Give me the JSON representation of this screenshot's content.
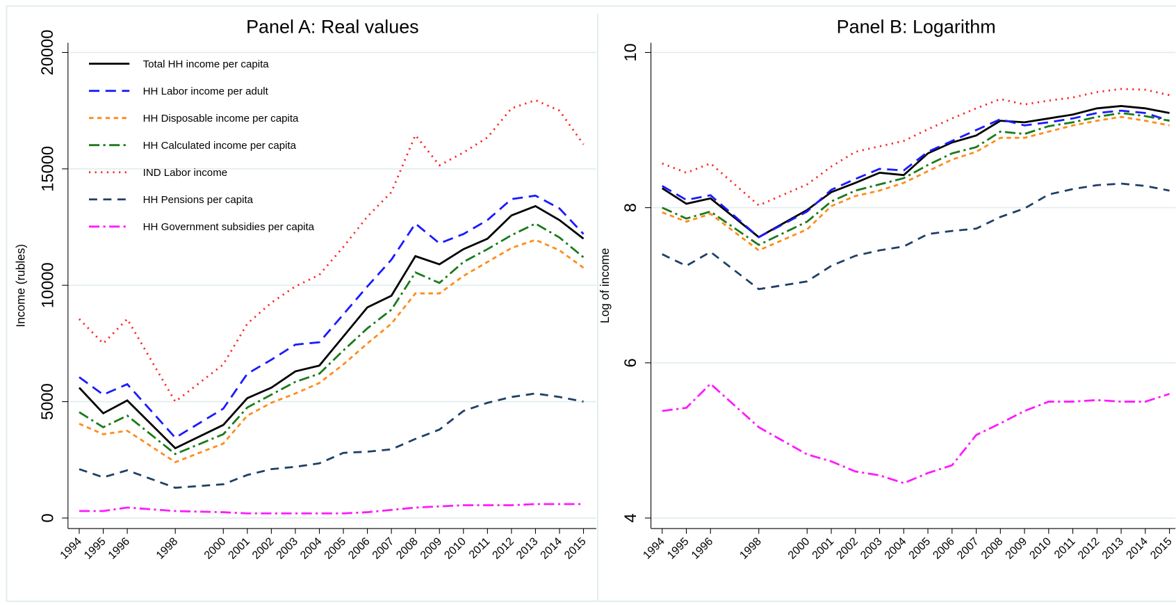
{
  "chart_data": [
    {
      "type": "line",
      "title": "Panel A: Real values",
      "ylabel": "Income (rubles)",
      "x": [
        1994,
        1995,
        1996,
        1998,
        2000,
        2001,
        2002,
        2003,
        2004,
        2005,
        2006,
        2007,
        2008,
        2009,
        2010,
        2011,
        2012,
        2013,
        2014,
        2015
      ],
      "xlim": [
        1994,
        2015
      ],
      "xticks": [
        1994,
        1995,
        1996,
        1998,
        2000,
        2001,
        2002,
        2003,
        2004,
        2005,
        2006,
        2007,
        2008,
        2009,
        2010,
        2011,
        2012,
        2013,
        2014,
        2015
      ],
      "ylim": [
        0,
        20000
      ],
      "yticks": [
        0,
        5000,
        10000,
        15000,
        20000
      ],
      "grid": true,
      "legend": "top-left",
      "series": [
        {
          "name": "Total HH income per capita",
          "color": "#000000",
          "style": "solid",
          "values": [
            5600,
            4500,
            5050,
            3000,
            4000,
            5150,
            5600,
            6300,
            6550,
            7800,
            9050,
            9550,
            11250,
            10900,
            11550,
            12000,
            13000,
            13400,
            12800,
            12000
          ]
        },
        {
          "name": "HH Labor income per adult",
          "color": "#1a1aff",
          "style": "longdash",
          "values": [
            6050,
            5300,
            5750,
            3450,
            4700,
            6200,
            6800,
            7450,
            7550,
            8750,
            9950,
            11100,
            12650,
            11800,
            12200,
            12800,
            13700,
            13850,
            13300,
            12200
          ]
        },
        {
          "name": "HH Disposable income per capita",
          "color": "#ff8c1a",
          "style": "shortdash",
          "values": [
            4050,
            3600,
            3750,
            2400,
            3200,
            4400,
            4950,
            5350,
            5800,
            6600,
            7500,
            8350,
            9650,
            9650,
            10400,
            11000,
            11600,
            11950,
            11500,
            10750
          ]
        },
        {
          "name": "HH Calculated income per capita",
          "color": "#1a7a1a",
          "style": "dashdot",
          "values": [
            4550,
            3900,
            4400,
            2750,
            3600,
            4750,
            5300,
            5850,
            6200,
            7200,
            8150,
            8950,
            10550,
            10100,
            11000,
            11550,
            12150,
            12650,
            12050,
            11200
          ]
        },
        {
          "name": "IND Labor income",
          "color": "#ff2020",
          "style": "dot",
          "values": [
            8550,
            7500,
            8550,
            5000,
            6600,
            8350,
            9250,
            9950,
            10450,
            11650,
            12950,
            14000,
            16450,
            15150,
            15700,
            16350,
            17600,
            17950,
            17500,
            16050
          ]
        },
        {
          "name": "HH Pensions per capita",
          "color": "#1f3f66",
          "style": "dash",
          "values": [
            2100,
            1750,
            2050,
            1300,
            1450,
            1850,
            2100,
            2200,
            2350,
            2800,
            2850,
            2950,
            3400,
            3800,
            4600,
            4950,
            5200,
            5350,
            5200,
            5000
          ]
        },
        {
          "name": "HH Government subsidies per capita",
          "color": "#ff1aff",
          "style": "dashdot",
          "values": [
            300,
            300,
            450,
            300,
            250,
            200,
            200,
            200,
            200,
            200,
            250,
            350,
            450,
            500,
            550,
            550,
            550,
            600,
            600,
            600
          ]
        }
      ]
    },
    {
      "type": "line",
      "title": "Panel B: Logarithm",
      "ylabel": "Log of income",
      "x": [
        1994,
        1995,
        1996,
        1998,
        2000,
        2001,
        2002,
        2003,
        2004,
        2005,
        2006,
        2007,
        2008,
        2009,
        2010,
        2011,
        2012,
        2013,
        2014,
        2015
      ],
      "xlim": [
        1994,
        2015
      ],
      "xticks": [
        1994,
        1995,
        1996,
        1998,
        2000,
        2001,
        2002,
        2003,
        2004,
        2005,
        2006,
        2007,
        2008,
        2009,
        2010,
        2011,
        2012,
        2013,
        2014,
        2015
      ],
      "ylim": [
        4,
        10
      ],
      "yticks": [
        4,
        6,
        8,
        10
      ],
      "grid": true,
      "series": [
        {
          "color": "#000000",
          "style": "solid",
          "values": [
            8.25,
            8.05,
            8.12,
            7.62,
            7.97,
            8.2,
            8.32,
            8.45,
            8.42,
            8.7,
            8.84,
            8.93,
            9.12,
            9.1,
            9.15,
            9.2,
            9.28,
            9.31,
            9.28,
            9.22
          ]
        },
        {
          "color": "#1a1aff",
          "style": "longdash",
          "values": [
            8.28,
            8.1,
            8.16,
            7.62,
            7.95,
            8.23,
            8.37,
            8.5,
            8.48,
            8.72,
            8.86,
            9.0,
            9.14,
            9.06,
            9.1,
            9.15,
            9.22,
            9.25,
            9.22,
            9.12
          ]
        },
        {
          "color": "#ff8c1a",
          "style": "shortdash",
          "values": [
            7.94,
            7.82,
            7.92,
            7.45,
            7.72,
            8.02,
            8.15,
            8.22,
            8.32,
            8.47,
            8.62,
            8.72,
            8.9,
            8.9,
            8.98,
            9.06,
            9.12,
            9.17,
            9.12,
            9.06
          ]
        },
        {
          "color": "#1a7a1a",
          "style": "dashdot",
          "values": [
            8.0,
            7.86,
            7.95,
            7.52,
            7.82,
            8.08,
            8.22,
            8.3,
            8.38,
            8.55,
            8.7,
            8.78,
            8.98,
            8.95,
            9.05,
            9.1,
            9.17,
            9.22,
            9.18,
            9.12
          ]
        },
        {
          "color": "#ff2020",
          "style": "dot",
          "values": [
            8.57,
            8.45,
            8.57,
            8.03,
            8.3,
            8.53,
            8.72,
            8.79,
            8.86,
            9.01,
            9.15,
            9.28,
            9.4,
            9.33,
            9.38,
            9.42,
            9.49,
            9.53,
            9.52,
            9.45
          ]
        },
        {
          "color": "#1f3f66",
          "style": "dash",
          "values": [
            7.4,
            7.25,
            7.43,
            6.95,
            7.05,
            7.25,
            7.38,
            7.45,
            7.5,
            7.66,
            7.7,
            7.73,
            7.88,
            7.99,
            8.17,
            8.24,
            8.29,
            8.31,
            8.28,
            8.22
          ]
        },
        {
          "color": "#ff1aff",
          "style": "dashdot",
          "values": [
            5.38,
            5.42,
            5.73,
            5.17,
            4.82,
            4.73,
            4.6,
            4.55,
            4.45,
            4.58,
            4.68,
            5.07,
            5.22,
            5.38,
            5.5,
            5.5,
            5.52,
            5.5,
            5.5,
            5.6
          ]
        }
      ]
    }
  ]
}
